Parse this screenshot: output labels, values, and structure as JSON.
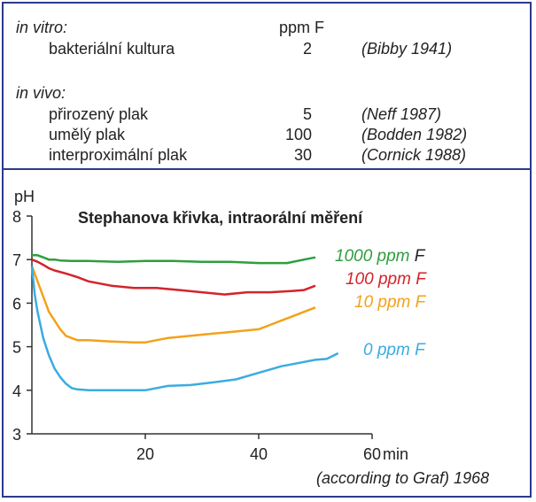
{
  "table": {
    "invitro_label": "in vitro:",
    "unit_header": "ppm F",
    "rows_invitro": [
      {
        "label": "bakteriální kultura",
        "value": "2",
        "ref": "(Bibby 1941)"
      }
    ],
    "invivo_label": "in vivo:",
    "rows_invivo": [
      {
        "label": "přirozený plak",
        "value": "5",
        "ref": "(Neff 1987)"
      },
      {
        "label": "umělý plak",
        "value": "100",
        "ref": "(Bodden 1982)"
      },
      {
        "label": "interproximální plak",
        "value": "30",
        "ref": "(Cornick 1988)"
      }
    ]
  },
  "chart_data": {
    "type": "line",
    "title": "Stephanova křivka, intraorální měření",
    "ylabel": "pH",
    "xlabel": "min",
    "source_note": "(according to Graf) 1968",
    "xlim": [
      0,
      60
    ],
    "ylim": [
      3,
      8
    ],
    "xticks": [
      "20",
      "40",
      "60"
    ],
    "yticks": [
      "3",
      "4",
      "5",
      "6",
      "7",
      "8"
    ],
    "colors": {
      "1000": "#2e9e3e",
      "100": "#d4232a",
      "10": "#f2a21b",
      "0": "#3aace0"
    },
    "series": [
      {
        "name_num": "1000 ppm",
        "name_unit": "F",
        "color": "#2e9e3e",
        "x": [
          0,
          1,
          2,
          3,
          4,
          5,
          7,
          10,
          15,
          20,
          25,
          30,
          35,
          40,
          45,
          48,
          50
        ],
        "y": [
          7.1,
          7.1,
          7.05,
          7.0,
          7.0,
          6.98,
          6.97,
          6.97,
          6.95,
          6.97,
          6.97,
          6.95,
          6.95,
          6.92,
          6.92,
          7.0,
          7.05
        ]
      },
      {
        "name_num": "100 ppm",
        "name_unit": "F",
        "color": "#d4232a",
        "x": [
          0,
          1,
          2,
          3,
          4,
          6,
          8,
          10,
          14,
          18,
          22,
          26,
          30,
          34,
          38,
          42,
          46,
          48,
          50
        ],
        "y": [
          7.0,
          6.95,
          6.88,
          6.8,
          6.75,
          6.68,
          6.6,
          6.5,
          6.4,
          6.35,
          6.35,
          6.3,
          6.25,
          6.2,
          6.25,
          6.25,
          6.28,
          6.3,
          6.4
        ]
      },
      {
        "name_num": "10 ppm",
        "name_unit": "F",
        "color": "#f2a21b",
        "x": [
          0,
          1,
          2,
          3,
          4,
          5,
          6,
          7,
          8,
          10,
          14,
          18,
          20,
          22,
          24,
          28,
          32,
          36,
          40,
          42,
          44,
          46,
          48,
          50
        ],
        "y": [
          6.85,
          6.5,
          6.15,
          5.8,
          5.6,
          5.4,
          5.25,
          5.2,
          5.15,
          5.15,
          5.12,
          5.1,
          5.1,
          5.15,
          5.2,
          5.25,
          5.3,
          5.35,
          5.4,
          5.5,
          5.6,
          5.7,
          5.8,
          5.9
        ]
      },
      {
        "name_num": "0 ppm",
        "name_unit": "F",
        "color": "#3aace0",
        "x": [
          0,
          0.5,
          1,
          1.5,
          2,
          3,
          4,
          5,
          6,
          7,
          8,
          10,
          14,
          18,
          20,
          22,
          24,
          28,
          32,
          36,
          40,
          44,
          48,
          50,
          52,
          54
        ],
        "y": [
          6.85,
          6.2,
          5.8,
          5.5,
          5.2,
          4.8,
          4.5,
          4.3,
          4.15,
          4.05,
          4.02,
          4.0,
          4.0,
          4.0,
          4.0,
          4.05,
          4.1,
          4.12,
          4.18,
          4.25,
          4.4,
          4.55,
          4.65,
          4.7,
          4.72,
          4.85
        ]
      }
    ]
  }
}
